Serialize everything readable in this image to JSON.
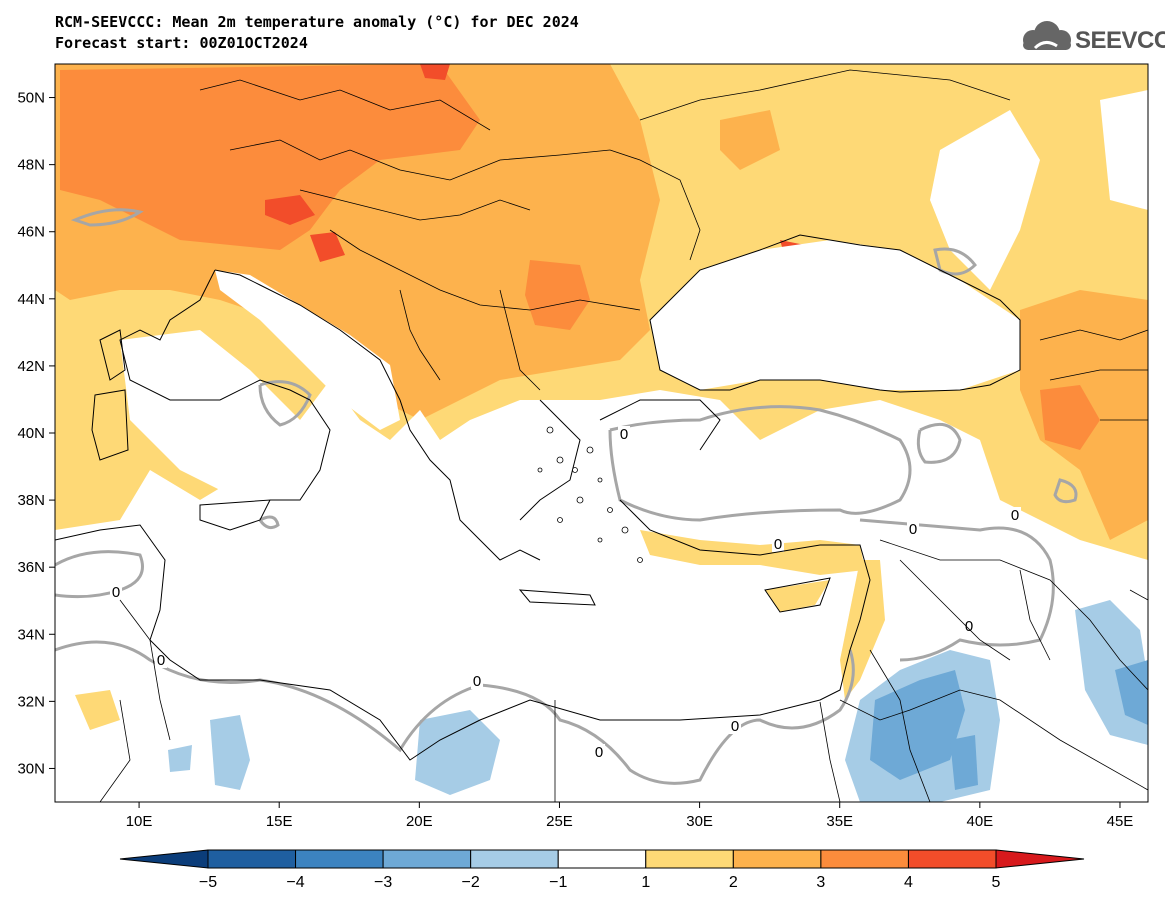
{
  "title": {
    "line1": "RCM-SEEVCCC: Mean 2m temperature anomaly (°C) for DEC 2024",
    "line2": "Forecast start: 00Z01OCT2024"
  },
  "logo": {
    "text": "SEEVCCC",
    "icon": "cloud-icon"
  },
  "map": {
    "lon_range": [
      7,
      46
    ],
    "lat_range": [
      29,
      51
    ],
    "lat_labels": [
      "50N",
      "48N",
      "46N",
      "44N",
      "42N",
      "40N",
      "38N",
      "36N",
      "34N",
      "32N",
      "30N"
    ],
    "lon_labels": [
      "10E",
      "15E",
      "20E",
      "25E",
      "30E",
      "35E",
      "40E",
      "45E"
    ],
    "contour_label": "0"
  },
  "colorbar": {
    "labels": [
      "-5",
      "-4",
      "-3",
      "-2",
      "-1",
      "1",
      "2",
      "3",
      "4",
      "5"
    ],
    "colors": [
      "#0b3d7a",
      "#1f5fa0",
      "#3c83c0",
      "#6ea9d6",
      "#a6cce6",
      "#ffffff",
      "#fed976",
      "#fdb24d",
      "#fc8c3c",
      "#f24d2a",
      "#d7191c"
    ]
  }
}
